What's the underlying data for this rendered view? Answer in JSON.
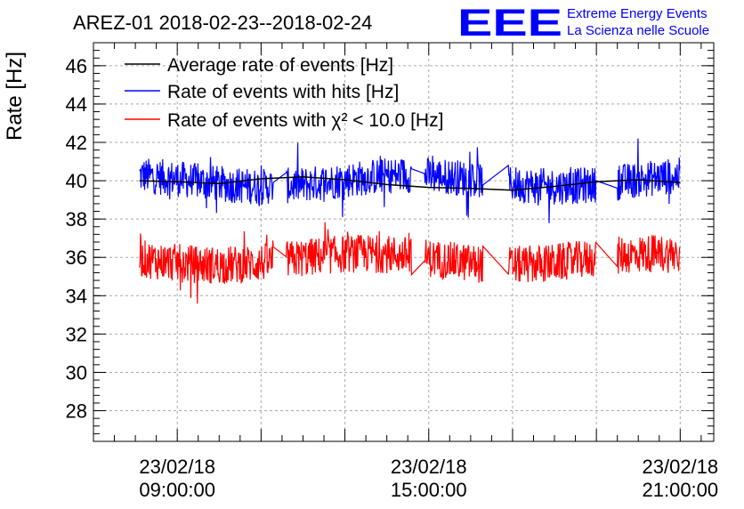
{
  "chart_data": {
    "type": "line",
    "title": "AREZ-01 2018-02-23--2018-02-24",
    "ylabel": "Rate [Hz]",
    "xlabel": "",
    "ylim": [
      26.4,
      47.2
    ],
    "xlim_hours": [
      7.0,
      21.8
    ],
    "grid": true,
    "legend_position": "top-left",
    "y_ticks": [
      28,
      30,
      32,
      34,
      36,
      38,
      40,
      42,
      44,
      46
    ],
    "x_ticks": [
      {
        "hour": 9,
        "date": "23/02/18",
        "time": "09:00:00"
      },
      {
        "hour": 15,
        "date": "23/02/18",
        "time": "15:00:00"
      },
      {
        "hour": 21,
        "date": "23/02/18",
        "time": "21:00:00"
      }
    ],
    "series": [
      {
        "name": "Average rate of events [Hz]",
        "color": "#000000",
        "x": [
          8.1,
          9.0,
          10.0,
          11.0,
          12.0,
          13.0,
          14.0,
          15.0,
          16.0,
          17.0,
          18.0,
          19.0,
          20.0,
          21.0
        ],
        "values": [
          40.0,
          39.95,
          39.85,
          40.1,
          40.2,
          40.05,
          39.8,
          39.65,
          39.6,
          39.5,
          39.7,
          39.95,
          40.05,
          39.9
        ]
      },
      {
        "name": "Rate of events with hits [Hz]",
        "color": "#0000ff",
        "segments": [
          [
            8.1,
            11.3
          ],
          [
            11.6,
            14.6
          ],
          [
            14.9,
            16.3
          ],
          [
            16.9,
            19.0
          ],
          [
            19.5,
            21.0
          ]
        ],
        "x_min": 8.1,
        "x_max": 21.0,
        "mean": 40.0,
        "spread": 1.9
      },
      {
        "name": "Rate of events with χ² < 10.0 [Hz]",
        "color": "#ff0000",
        "segments": [
          [
            8.1,
            11.3
          ],
          [
            11.6,
            14.6
          ],
          [
            14.9,
            16.3
          ],
          [
            16.9,
            19.0
          ],
          [
            19.5,
            21.0
          ]
        ],
        "x_min": 8.1,
        "x_max": 21.0,
        "mean": 35.9,
        "spread": 2.0
      }
    ]
  },
  "logo": {
    "letters": "EEE",
    "line1": "Extreme Energy Events",
    "line2": "La Scienza nelle Scuole",
    "color": "#0000ff"
  }
}
